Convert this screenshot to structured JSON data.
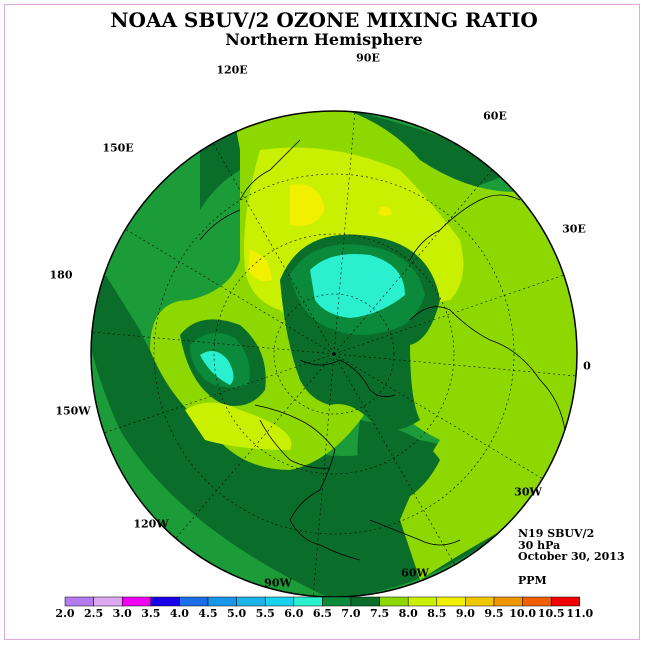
{
  "title": "NOAA SBUV/2 OZONE MIXING RATIO",
  "subtitle": "Northern Hemisphere",
  "longitude_labels": [
    "90E",
    "120E",
    "60E",
    "150E",
    "30E",
    "180",
    "0",
    "150W",
    "30W",
    "120W",
    "60W",
    "90W"
  ],
  "info": {
    "instrument": "N19 SBUV/2",
    "level": "30 hPa",
    "date": "October 30, 2013",
    "units": "PPM"
  },
  "colorbar": {
    "labels": [
      "2.0",
      "2.5",
      "3.0",
      "3.5",
      "4.0",
      "4.5",
      "5.0",
      "5.5",
      "6.0",
      "6.5",
      "7.0",
      "7.5",
      "8.0",
      "8.5",
      "9.0",
      "9.5",
      "10.0",
      "10.5",
      "11.0"
    ],
    "colors": [
      "#b47cf0",
      "#dca8f0",
      "#f000f0",
      "#1a00e8",
      "#1a6ee8",
      "#1a96e8",
      "#1ab4e8",
      "#1ad2f0",
      "#2af0d0",
      "#0a8a3a",
      "#0a6e2a",
      "#8cd800",
      "#c8f000",
      "#f0f000",
      "#f0c800",
      "#f09600",
      "#f06000",
      "#f00000",
      "#8c5a3c"
    ]
  },
  "map_colors": {
    "band_6_0": "#2af0d0",
    "band_6_5": "#0a8a3a",
    "band_7_0": "#0a6e2a",
    "band_7_5": "#1c9c38",
    "band_8_0": "#8cd800",
    "band_8_5": "#c8f000",
    "band_9_0": "#f0f000",
    "coastline": "#000000",
    "graticule": "#000000"
  }
}
